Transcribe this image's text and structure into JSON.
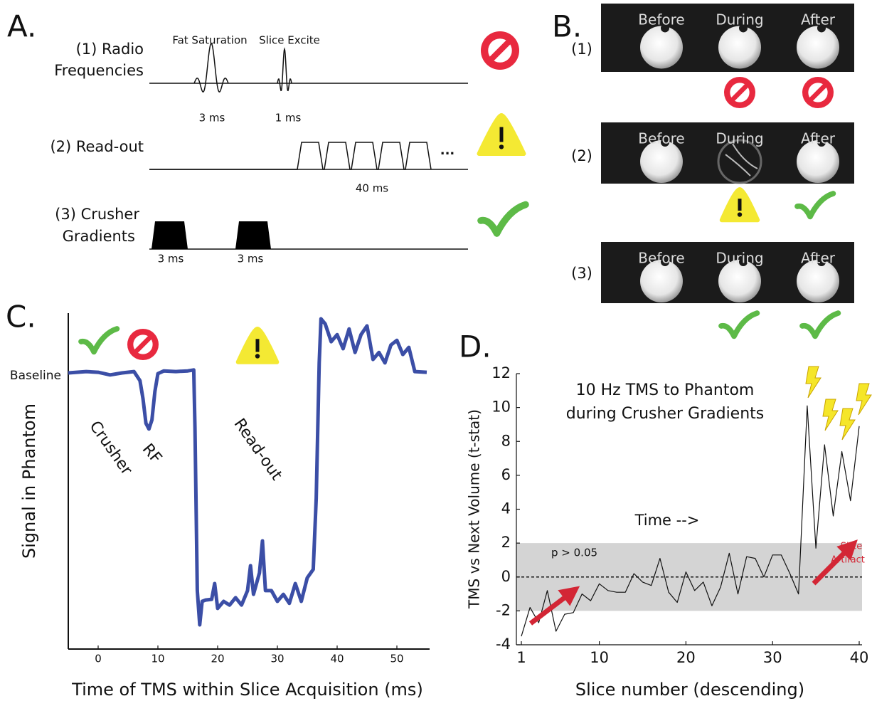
{
  "panel_a": {
    "label": "A.",
    "rows": [
      {
        "label_lines": [
          "(1) Radio",
          "Frequencies"
        ],
        "pulses": [
          "Fat Saturation",
          "Slice Excite"
        ],
        "durations": [
          "3 ms",
          "1 ms"
        ]
      },
      {
        "label_lines": [
          "(2) Read-out"
        ],
        "duration": "40 ms",
        "ellipsis": "..."
      },
      {
        "label_lines": [
          "(3) Crusher",
          "Gradients"
        ],
        "durations": [
          "3 ms",
          "3 ms"
        ]
      }
    ]
  },
  "panel_b": {
    "label": "B.",
    "rows": [
      {
        "label": "(1)",
        "images": [
          "Before",
          "During",
          "After"
        ]
      },
      {
        "label": "(2)",
        "images": [
          "Before",
          "During",
          "After"
        ]
      },
      {
        "label": "(3)",
        "images": [
          "Before",
          "During",
          "After"
        ]
      }
    ]
  },
  "chart_data": [
    {
      "type": "line",
      "panel_label": "C.",
      "x_label": "Time of TMS within Slice Acquisition (ms)",
      "y_label": "Signal in Phantom",
      "annotations": [
        "Crusher",
        "RF",
        "Read-out"
      ],
      "x": [
        -5,
        -2,
        0,
        2,
        4,
        6,
        7,
        7.5,
        8,
        8.5,
        9,
        9.5,
        10,
        11,
        13,
        15,
        16,
        16.2,
        16.6,
        17,
        17.4,
        18,
        19,
        19.5,
        20,
        21,
        22,
        23,
        24,
        25,
        25.5,
        26,
        27,
        27.5,
        28,
        29,
        30,
        31,
        32,
        33,
        34,
        35,
        36,
        36.5,
        37,
        37.3,
        38,
        39,
        40,
        41,
        42,
        43,
        44,
        45,
        46,
        47,
        48,
        49,
        50,
        51,
        52,
        53,
        55
      ],
      "series": [
        {
          "color": "#3b4ea6",
          "values": [
            82.2,
            82.6,
            82.4,
            81.6,
            82.2,
            82.6,
            79.9,
            74.6,
            67.2,
            65.5,
            68.2,
            76.7,
            82.0,
            82.8,
            82.6,
            82.8,
            83.1,
            66.1,
            17.4,
            7.2,
            14.2,
            14.6,
            14.8,
            19.5,
            12.1,
            14.2,
            13.1,
            15.3,
            13.1,
            17.4,
            24.8,
            16.3,
            22.7,
            32.2,
            17.4,
            17.4,
            14.2,
            16.3,
            13.6,
            19.5,
            14.2,
            21.2,
            23.7,
            44.9,
            85.2,
            98.3,
            96.8,
            91.5,
            93.6,
            89.4,
            95.3,
            88.3,
            93.6,
            96.2,
            86.2,
            88.3,
            85.2,
            90.5,
            91.9,
            87.7,
            89.8,
            82.6,
            82.4
          ]
        }
      ],
      "xlim": [
        -5,
        55
      ],
      "xticks": [
        0,
        10,
        20,
        30,
        40,
        50
      ],
      "ylim": [
        0,
        100
      ],
      "yticks": [
        {
          "value": 82.6,
          "label": "Baseline"
        }
      ]
    },
    {
      "type": "line",
      "panel_label": "D.",
      "title_lines": [
        "10 Hz TMS to Phantom",
        "during Crusher Gradients"
      ],
      "x_label": "Slice number (descending)",
      "y_label": "TMS vs Next Volume (t-stat)",
      "annotations": [
        "Time -->",
        "p > 0.05"
      ],
      "artifact_label_lines": [
        "Slice",
        "Artifact"
      ],
      "band": [
        -2,
        2
      ],
      "reference_line": 0,
      "x": [
        1,
        2,
        3,
        4,
        5,
        6,
        7,
        8,
        9,
        10,
        11,
        12,
        13,
        14,
        15,
        16,
        17,
        18,
        19,
        20,
        21,
        22,
        23,
        24,
        25,
        26,
        27,
        28,
        29,
        30,
        31,
        32,
        33,
        34,
        35,
        36,
        37,
        38,
        39,
        40
      ],
      "series": [
        {
          "color": "#111111",
          "values": [
            -3.5,
            -1.8,
            -2.7,
            -0.8,
            -3.2,
            -2.2,
            -2.1,
            -1.0,
            -1.4,
            -0.4,
            -0.8,
            -0.9,
            -0.9,
            0.2,
            -0.3,
            -0.5,
            1.1,
            -0.9,
            -1.5,
            0.3,
            -0.8,
            -0.3,
            -1.7,
            -0.6,
            1.4,
            -1.0,
            1.2,
            1.1,
            0.0,
            1.3,
            1.3,
            0.2,
            -1.0,
            10.1,
            1.7,
            7.8,
            3.6,
            7.4,
            4.5,
            8.9
          ]
        }
      ],
      "xlim": [
        1,
        40
      ],
      "xticks": [
        1,
        10,
        20,
        30,
        40
      ],
      "ylim": [
        -4,
        12
      ],
      "yticks": [
        -4,
        -2,
        0,
        2,
        4,
        6,
        8,
        10,
        12
      ]
    }
  ]
}
